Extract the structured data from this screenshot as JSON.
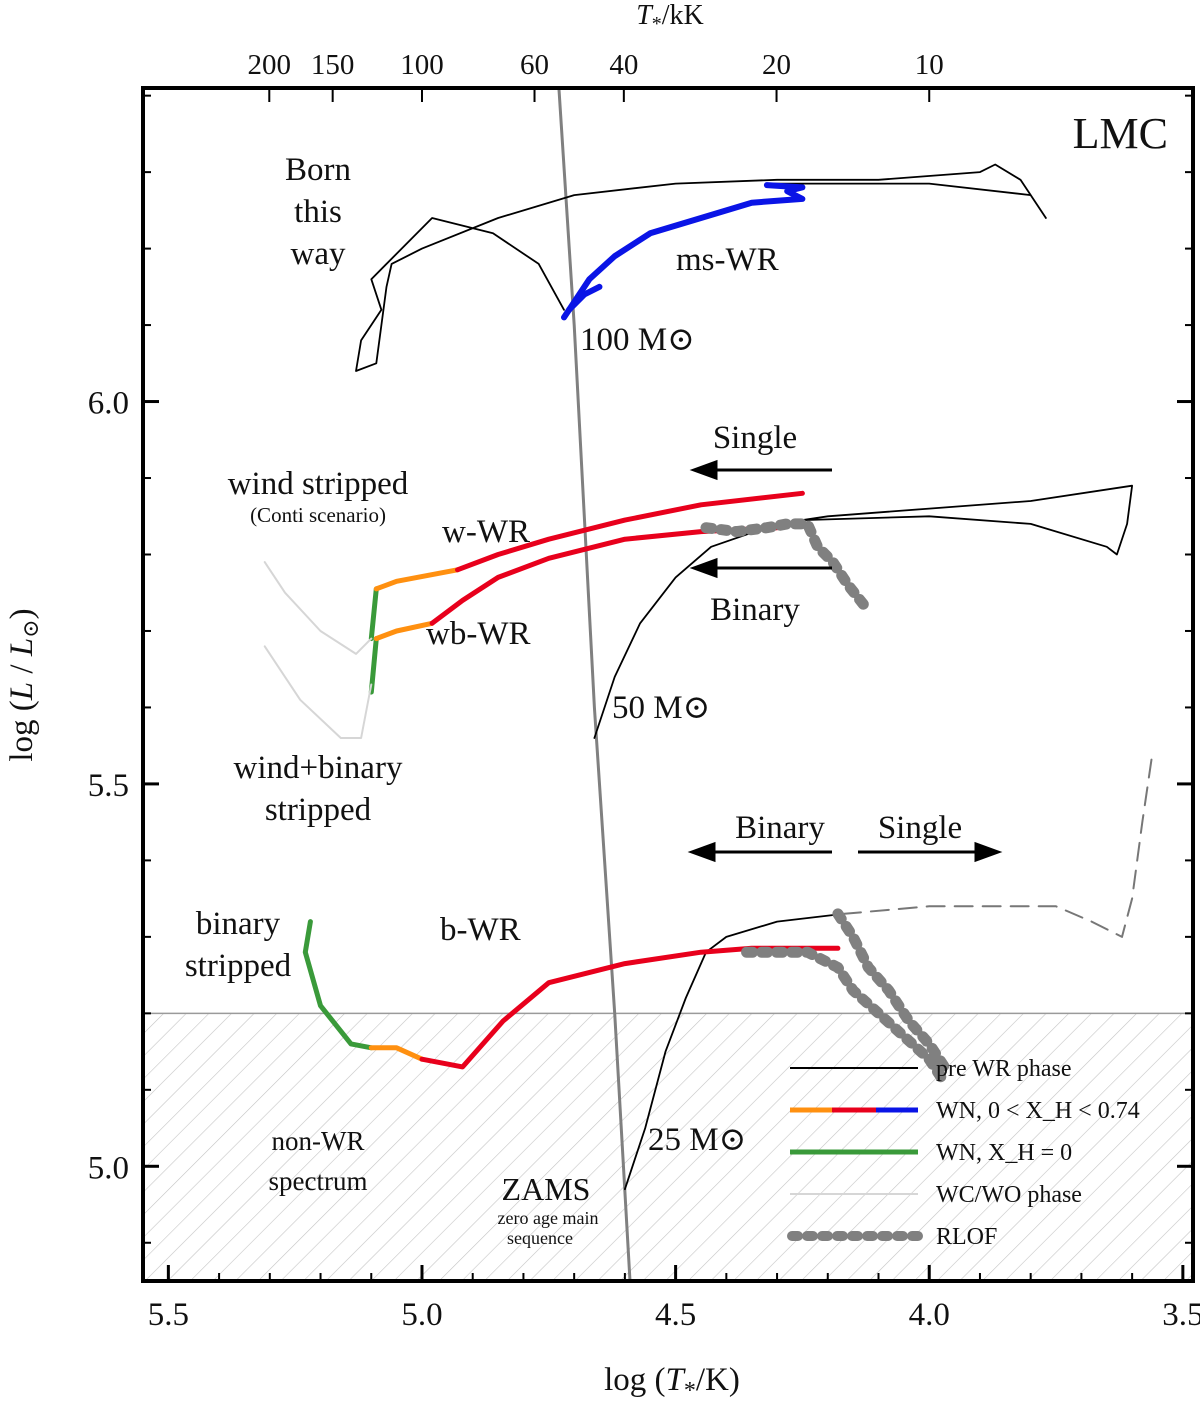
{
  "chart_data": {
    "type": "line",
    "title": "LMC",
    "xlabel": "log (T*/K)",
    "ylabel": "log (L/L⊙)",
    "top_xlabel": "T*/kK",
    "xlim": [
      5.55,
      3.48
    ],
    "ylim": [
      4.85,
      6.41
    ],
    "x_ticks": [
      "5.5",
      "5.0",
      "4.5",
      "4.0",
      "3.5"
    ],
    "x_tick_values": [
      5.5,
      5.0,
      4.5,
      4.0,
      3.5
    ],
    "y_ticks": [
      "5.0",
      "5.5",
      "6.0"
    ],
    "y_tick_values": [
      5.0,
      5.5,
      6.0
    ],
    "top_ticks": [
      "200",
      "150",
      "100",
      "60",
      "40",
      "20",
      "10"
    ],
    "top_tick_values": [
      200,
      150,
      100,
      60,
      40,
      20,
      10
    ],
    "non_wr_boundary_logL": 5.2,
    "annotations": [
      {
        "key": "born1",
        "text": "Born"
      },
      {
        "key": "born2",
        "text": "this"
      },
      {
        "key": "born3",
        "text": "way"
      },
      {
        "key": "mswr",
        "text": "ms-WR"
      },
      {
        "key": "m100",
        "text": "100 M⊙"
      },
      {
        "key": "single1",
        "text": "Single"
      },
      {
        "key": "binary1",
        "text": "Binary"
      },
      {
        "key": "wind_stripped",
        "text": "wind stripped"
      },
      {
        "key": "conti",
        "text": "(Conti scenario)"
      },
      {
        "key": "wwr",
        "text": "w-WR"
      },
      {
        "key": "wbwr",
        "text": "wb-WR"
      },
      {
        "key": "m50",
        "text": "50 M⊙"
      },
      {
        "key": "wb1",
        "text": "wind+binary"
      },
      {
        "key": "wb2",
        "text": "stripped"
      },
      {
        "key": "binary2",
        "text": "Binary"
      },
      {
        "key": "single2",
        "text": "Single"
      },
      {
        "key": "bs1",
        "text": "binary"
      },
      {
        "key": "bs2",
        "text": "stripped"
      },
      {
        "key": "bwr",
        "text": "b-WR"
      },
      {
        "key": "nonwr1",
        "text": "non-WR"
      },
      {
        "key": "nonwr2",
        "text": "spectrum"
      },
      {
        "key": "m25",
        "text": "25 M⊙"
      },
      {
        "key": "zams",
        "text": "ZAMS"
      },
      {
        "key": "zams2",
        "text": "zero age main"
      },
      {
        "key": "zams3",
        "text": "sequence"
      }
    ],
    "legend": [
      {
        "label": "pre WR phase",
        "color": "#000000",
        "style": "solid-thin"
      },
      {
        "label": "WN, 0 < X_H < 0.74",
        "color": "#e8001c",
        "style": "orange-red-blue"
      },
      {
        "label": "WN, X_H = 0",
        "color": "#3a9a3a",
        "style": "solid-thick"
      },
      {
        "label": "WC/WO phase",
        "color": "#d6d6d6",
        "style": "solid-thin"
      },
      {
        "label": "RLOF",
        "color": "#808080",
        "style": "dotted-thick"
      }
    ],
    "colors": {
      "pre_wr": "#000000",
      "wn_orange": "#ff9010",
      "wn_red": "#e8001c",
      "wn_blue": "#0a14e6",
      "wn_green": "#3a9a3a",
      "wc": "#d6d6d6",
      "rlof": "#808080",
      "zams": "#808080",
      "hatch": "#c4c4c4"
    },
    "series": [
      {
        "name": "ZAMS",
        "class": "zams",
        "points": [
          [
            4.73,
            6.41
          ],
          [
            4.7,
            6.1
          ],
          [
            4.66,
            5.6
          ],
          [
            4.62,
            5.2
          ],
          [
            4.59,
            4.85
          ]
        ]
      },
      {
        "name": "100 Msun pre-WR",
        "class": "pre",
        "points": [
          [
            4.72,
            6.12
          ],
          [
            4.77,
            6.18
          ],
          [
            4.86,
            6.22
          ],
          [
            4.98,
            6.24
          ],
          [
            5.1,
            6.16
          ],
          [
            5.08,
            6.12
          ],
          [
            5.12,
            6.08
          ],
          [
            5.13,
            6.04
          ],
          [
            5.09,
            6.05
          ],
          [
            5.07,
            6.15
          ],
          [
            5.06,
            6.18
          ],
          [
            5.0,
            6.2
          ],
          [
            4.85,
            6.24
          ],
          [
            4.7,
            6.27
          ],
          [
            4.5,
            6.285
          ],
          [
            4.3,
            6.29
          ],
          [
            4.1,
            6.29
          ],
          [
            3.9,
            6.3
          ],
          [
            3.87,
            6.31
          ],
          [
            3.82,
            6.29
          ],
          [
            3.77,
            6.24
          ],
          [
            3.8,
            6.27
          ],
          [
            4.0,
            6.285
          ],
          [
            4.2,
            6.285
          ],
          [
            4.32,
            6.285
          ]
        ]
      },
      {
        "name": "100 Msun ms-WR",
        "class": "blue",
        "points": [
          [
            4.72,
            6.11
          ],
          [
            4.7,
            6.13
          ],
          [
            4.67,
            6.16
          ],
          [
            4.62,
            6.19
          ],
          [
            4.55,
            6.22
          ],
          [
            4.45,
            6.24
          ],
          [
            4.35,
            6.26
          ],
          [
            4.25,
            6.265
          ],
          [
            4.28,
            6.275
          ],
          [
            4.25,
            6.28
          ],
          [
            4.32,
            6.283
          ]
        ]
      },
      {
        "name": "100 Msun blue hook",
        "class": "blue",
        "points": [
          [
            4.71,
            6.12
          ],
          [
            4.68,
            6.14
          ],
          [
            4.65,
            6.15
          ]
        ]
      },
      {
        "name": "50 Msun single pre-WR",
        "class": "pre",
        "points": [
          [
            4.66,
            5.56
          ],
          [
            4.62,
            5.64
          ],
          [
            4.57,
            5.71
          ],
          [
            4.5,
            5.77
          ],
          [
            4.43,
            5.81
          ],
          [
            4.3,
            5.84
          ],
          [
            4.2,
            5.85
          ],
          [
            4.0,
            5.86
          ],
          [
            3.8,
            5.87
          ],
          [
            3.6,
            5.89
          ],
          [
            3.61,
            5.84
          ],
          [
            3.63,
            5.8
          ],
          [
            3.65,
            5.81
          ],
          [
            3.8,
            5.84
          ],
          [
            4.0,
            5.85
          ],
          [
            4.25,
            5.845
          ]
        ]
      },
      {
        "name": "w-WR",
        "class": "wn",
        "points": [
          [
            5.1,
            5.69
          ],
          [
            5.09,
            5.755
          ],
          [
            5.05,
            5.765
          ],
          [
            4.93,
            5.78
          ],
          [
            4.85,
            5.8
          ],
          [
            4.75,
            5.82
          ],
          [
            4.6,
            5.845
          ],
          [
            4.45,
            5.865
          ],
          [
            4.25,
            5.88
          ]
        ],
        "split_orange_green": [
          5.09,
          4.92
        ]
      },
      {
        "name": "wb-WR",
        "class": "wn",
        "points": [
          [
            5.1,
            5.62
          ],
          [
            5.09,
            5.69
          ],
          [
            5.05,
            5.7
          ],
          [
            4.98,
            5.71
          ],
          [
            4.92,
            5.74
          ],
          [
            4.85,
            5.77
          ],
          [
            4.75,
            5.795
          ],
          [
            4.6,
            5.82
          ],
          [
            4.45,
            5.83
          ],
          [
            4.3,
            5.835
          ]
        ],
        "split_orange_green": [
          5.09,
          4.98
        ]
      },
      {
        "name": "50 Msun RLOF",
        "class": "rlof",
        "points": [
          [
            4.44,
            5.835
          ],
          [
            4.38,
            5.83
          ],
          [
            4.32,
            5.835
          ],
          [
            4.28,
            5.84
          ],
          [
            4.24,
            5.84
          ],
          [
            4.22,
            5.81
          ],
          [
            4.19,
            5.79
          ],
          [
            4.16,
            5.76
          ],
          [
            4.13,
            5.735
          ]
        ]
      },
      {
        "name": "25 Msun pre-WR",
        "class": "pre",
        "points": [
          [
            4.6,
            4.97
          ],
          [
            4.56,
            5.05
          ],
          [
            4.52,
            5.15
          ],
          [
            4.48,
            5.22
          ],
          [
            4.44,
            5.28
          ],
          [
            4.4,
            5.3
          ],
          [
            4.3,
            5.32
          ],
          [
            4.17,
            5.33
          ]
        ]
      },
      {
        "name": "25 Msun single dashed",
        "class": "dashed",
        "points": [
          [
            4.17,
            5.33
          ],
          [
            4.0,
            5.34
          ],
          [
            3.85,
            5.34
          ],
          [
            3.75,
            5.34
          ],
          [
            3.68,
            5.32
          ],
          [
            3.62,
            5.3
          ],
          [
            3.6,
            5.35
          ],
          [
            3.58,
            5.45
          ],
          [
            3.56,
            5.54
          ]
        ]
      },
      {
        "name": "b-WR",
        "class": "wn",
        "points": [
          [
            5.22,
            5.32
          ],
          [
            5.23,
            5.28
          ],
          [
            5.2,
            5.21
          ],
          [
            5.14,
            5.16
          ],
          [
            5.1,
            5.155
          ],
          [
            5.05,
            5.155
          ],
          [
            5.0,
            5.14
          ],
          [
            4.92,
            5.13
          ],
          [
            4.84,
            5.19
          ],
          [
            4.75,
            5.24
          ],
          [
            4.6,
            5.265
          ],
          [
            4.45,
            5.28
          ],
          [
            4.35,
            5.285
          ],
          [
            4.25,
            5.285
          ],
          [
            4.18,
            5.285
          ]
        ],
        "split_orange_green": [
          5.07,
          5.0
        ]
      },
      {
        "name": "25 Msun RLOF",
        "class": "rlof",
        "points": [
          [
            4.36,
            5.28
          ],
          [
            4.3,
            5.28
          ],
          [
            4.24,
            5.28
          ],
          [
            4.18,
            5.26
          ],
          [
            4.15,
            5.23
          ],
          [
            4.1,
            5.2
          ],
          [
            4.05,
            5.17
          ],
          [
            4.0,
            5.14
          ],
          [
            3.97,
            5.11
          ]
        ]
      },
      {
        "name": "25 Msun RLOF 2",
        "class": "rlof",
        "points": [
          [
            4.18,
            5.33
          ],
          [
            4.15,
            5.3
          ],
          [
            4.12,
            5.26
          ],
          [
            4.08,
            5.23
          ],
          [
            4.04,
            5.19
          ],
          [
            4.0,
            5.16
          ],
          [
            3.97,
            5.13
          ]
        ]
      },
      {
        "name": "WC wind stripped",
        "class": "wc",
        "points": [
          [
            5.1,
            5.69
          ],
          [
            5.13,
            5.67
          ],
          [
            5.2,
            5.7
          ],
          [
            5.27,
            5.75
          ],
          [
            5.31,
            5.79
          ]
        ]
      },
      {
        "name": "WC wind+binary",
        "class": "wc",
        "points": [
          [
            5.1,
            5.63
          ],
          [
            5.12,
            5.56
          ],
          [
            5.16,
            5.56
          ],
          [
            5.24,
            5.61
          ],
          [
            5.31,
            5.68
          ]
        ]
      }
    ]
  }
}
